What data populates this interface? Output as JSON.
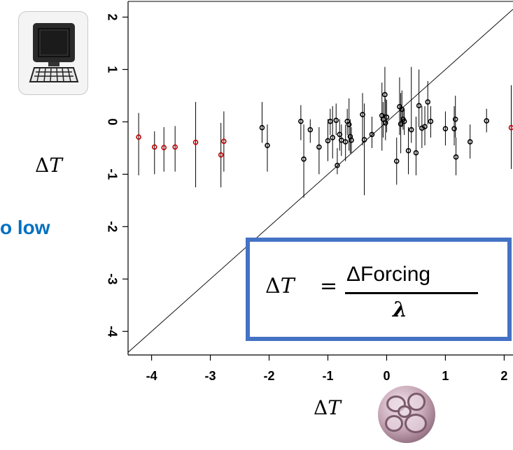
{
  "labels": {
    "side_text": "o low",
    "delta_symbol": "Δ",
    "var_T": "T",
    "formula_numerator": "ΔForcing",
    "formula_equals": "=",
    "formula_denominator": "λ"
  },
  "icons": [
    "computer-icon",
    "virus-image"
  ],
  "chart_data": {
    "type": "scatter",
    "xlim": [
      -4.4,
      2.15
    ],
    "ylim": [
      -4.45,
      2.3
    ],
    "x_ticks": [
      -4,
      -3,
      -2,
      -1,
      0,
      1,
      2
    ],
    "y_ticks": [
      -4,
      -3,
      -2,
      -1,
      0,
      1,
      2
    ],
    "diagonal_line": true,
    "colors": {
      "axis": "#000000",
      "normal_point": "#000000",
      "highlight_point": "#c00000"
    },
    "points": [
      {
        "x": -4.22,
        "y": -0.29,
        "lo": -1.02,
        "hi": 0.17,
        "red": true
      },
      {
        "x": -3.95,
        "y": -0.48,
        "lo": -1.0,
        "hi": -0.18,
        "red": true
      },
      {
        "x": -3.79,
        "y": -0.49,
        "lo": -0.95,
        "hi": -0.1,
        "red": true
      },
      {
        "x": -3.6,
        "y": -0.48,
        "lo": -0.95,
        "hi": -0.08,
        "red": true
      },
      {
        "x": -3.25,
        "y": -0.39,
        "lo": -1.25,
        "hi": 0.38,
        "red": true
      },
      {
        "x": -2.82,
        "y": -0.63,
        "lo": -1.25,
        "hi": -0.02,
        "red": true
      },
      {
        "x": -2.77,
        "y": -0.37,
        "lo": -0.95,
        "hi": 0.2,
        "red": true
      },
      {
        "x": -2.12,
        "y": -0.11,
        "lo": -0.4,
        "hi": 0.38,
        "red": false
      },
      {
        "x": -2.03,
        "y": -0.45,
        "lo": -0.95,
        "hi": -0.05,
        "red": false
      },
      {
        "x": -1.46,
        "y": 0.01,
        "lo": -0.35,
        "hi": 0.32,
        "red": false
      },
      {
        "x": -1.41,
        "y": -0.71,
        "lo": -1.45,
        "hi": -0.05,
        "red": false
      },
      {
        "x": -1.3,
        "y": -0.15,
        "lo": -0.4,
        "hi": 0.05,
        "red": false
      },
      {
        "x": -1.15,
        "y": -0.48,
        "lo": -1.0,
        "hi": -0.1,
        "red": false
      },
      {
        "x": -1.0,
        "y": -0.36,
        "lo": -0.75,
        "hi": 0.05,
        "red": false
      },
      {
        "x": -0.96,
        "y": 0.01,
        "lo": -0.25,
        "hi": 0.25,
        "red": false
      },
      {
        "x": -0.92,
        "y": -0.3,
        "lo": -0.7,
        "hi": 0.3,
        "red": false
      },
      {
        "x": -0.86,
        "y": 0.03,
        "lo": -0.25,
        "hi": 0.35,
        "red": false
      },
      {
        "x": -0.84,
        "y": -0.83,
        "lo": -1.0,
        "hi": -0.5,
        "red": false
      },
      {
        "x": -0.8,
        "y": -0.24,
        "lo": -0.55,
        "hi": 0.05,
        "red": false
      },
      {
        "x": -0.77,
        "y": -0.35,
        "lo": -0.65,
        "hi": -0.05,
        "red": false
      },
      {
        "x": -0.7,
        "y": -0.38,
        "lo": -0.75,
        "hi": -0.05,
        "red": false
      },
      {
        "x": -0.67,
        "y": 0.01,
        "lo": -0.25,
        "hi": 0.25,
        "red": false
      },
      {
        "x": -0.64,
        "y": -0.05,
        "lo": -0.55,
        "hi": 0.45,
        "red": false
      },
      {
        "x": -0.62,
        "y": -0.28,
        "lo": -0.6,
        "hi": 0.05,
        "red": false
      },
      {
        "x": -0.6,
        "y": -0.35,
        "lo": -0.6,
        "hi": -0.1,
        "red": false
      },
      {
        "x": -0.41,
        "y": 0.14,
        "lo": -0.45,
        "hi": 0.55,
        "red": false
      },
      {
        "x": -0.38,
        "y": -0.34,
        "lo": -1.4,
        "hi": 0.35,
        "red": false
      },
      {
        "x": -0.25,
        "y": -0.24,
        "lo": -0.5,
        "hi": 0.1,
        "red": false
      },
      {
        "x": -0.08,
        "y": 0.12,
        "lo": -0.55,
        "hi": 0.75,
        "red": false
      },
      {
        "x": -0.06,
        "y": 0.05,
        "lo": -0.3,
        "hi": 0.38,
        "red": false
      },
      {
        "x": -0.03,
        "y": 0.52,
        "lo": 0.0,
        "hi": 1.05,
        "red": false
      },
      {
        "x": -0.02,
        "y": -0.02,
        "lo": -0.35,
        "hi": 0.45,
        "red": false
      },
      {
        "x": 0.0,
        "y": 0.09,
        "lo": -0.2,
        "hi": 0.42,
        "red": false
      },
      {
        "x": 0.17,
        "y": -0.75,
        "lo": -1.2,
        "hi": -0.3,
        "red": false
      },
      {
        "x": 0.22,
        "y": 0.29,
        "lo": -0.25,
        "hi": 0.85,
        "red": false
      },
      {
        "x": 0.24,
        "y": -0.04,
        "lo": -0.6,
        "hi": 0.55,
        "red": false
      },
      {
        "x": 0.26,
        "y": 0.24,
        "lo": -0.1,
        "hi": 0.6,
        "red": false
      },
      {
        "x": 0.28,
        "y": 0.05,
        "lo": -0.15,
        "hi": 0.25,
        "red": false
      },
      {
        "x": 0.3,
        "y": 0.01,
        "lo": -0.25,
        "hi": 0.25,
        "red": false
      },
      {
        "x": 0.37,
        "y": -0.55,
        "lo": -1.0,
        "hi": -0.1,
        "red": false
      },
      {
        "x": 0.42,
        "y": -0.15,
        "lo": -0.4,
        "hi": 1.05,
        "red": false
      },
      {
        "x": 0.5,
        "y": -0.59,
        "lo": -1.02,
        "hi": 0.1,
        "red": false
      },
      {
        "x": 0.55,
        "y": 0.31,
        "lo": -0.1,
        "hi": 1.0,
        "red": false
      },
      {
        "x": 0.6,
        "y": -0.12,
        "lo": -0.5,
        "hi": 0.3,
        "red": false
      },
      {
        "x": 0.65,
        "y": -0.09,
        "lo": -0.45,
        "hi": 0.3,
        "red": false
      },
      {
        "x": 0.7,
        "y": 0.38,
        "lo": -0.05,
        "hi": 0.78,
        "red": false
      },
      {
        "x": 0.75,
        "y": 0.01,
        "lo": -0.3,
        "hi": 0.3,
        "red": false
      },
      {
        "x": 1.0,
        "y": -0.13,
        "lo": -0.45,
        "hi": 0.2,
        "red": false
      },
      {
        "x": 1.15,
        "y": -0.13,
        "lo": -0.45,
        "hi": 0.3,
        "red": false
      },
      {
        "x": 1.17,
        "y": 0.05,
        "lo": -0.3,
        "hi": 0.5,
        "red": false
      },
      {
        "x": 1.18,
        "y": -0.67,
        "lo": -1.02,
        "hi": -0.3,
        "red": false
      },
      {
        "x": 1.42,
        "y": -0.38,
        "lo": -0.7,
        "hi": -0.05,
        "red": false
      },
      {
        "x": 1.7,
        "y": 0.02,
        "lo": -0.2,
        "hi": 0.25,
        "red": false
      },
      {
        "x": 2.12,
        "y": -0.11,
        "lo": -0.9,
        "hi": 0.7,
        "red": true
      }
    ]
  }
}
